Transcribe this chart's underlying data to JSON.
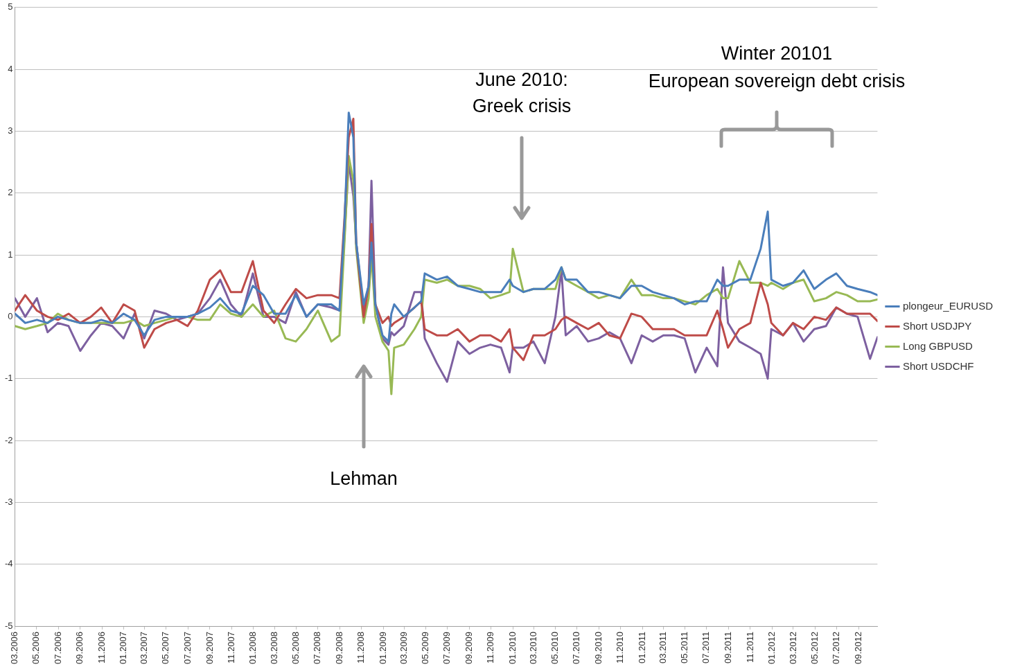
{
  "chart_data": {
    "type": "line",
    "x": [
      "2006-03-01",
      "2006-03-30",
      "2006-05-02",
      "2006-06-01",
      "2006-06-30",
      "2006-07-30",
      "2006-09-01",
      "2006-10-01",
      "2006-10-30",
      "2006-11-30",
      "2007-01-01",
      "2007-02-01",
      "2007-02-28",
      "2007-03-29",
      "2007-05-01",
      "2007-05-31",
      "2007-06-30",
      "2007-07-29",
      "2007-09-01",
      "2007-09-30",
      "2007-10-30",
      "2007-11-29",
      "2007-12-31",
      "2008-01-30",
      "2008-02-29",
      "2008-04-01",
      "2008-04-30",
      "2008-05-30",
      "2008-07-01",
      "2008-08-08",
      "2008-08-31",
      "2008-09-14",
      "2008-09-26",
      "2008-10-09",
      "2008-10-17",
      "2008-11-07",
      "2008-11-21",
      "2008-11-29",
      "2008-12-10",
      "2008-12-30",
      "2009-01-16",
      "2009-01-24",
      "2009-02-01",
      "2009-02-28",
      "2009-03-30",
      "2009-04-18",
      "2009-04-28",
      "2009-06-01",
      "2009-06-30",
      "2009-07-30",
      "2009-09-01",
      "2009-10-01",
      "2009-10-30",
      "2009-11-29",
      "2009-12-23",
      "2010-01-01",
      "2010-01-31",
      "2010-02-28",
      "2010-04-01",
      "2010-05-01",
      "2010-05-18",
      "2010-05-30",
      "2010-06-30",
      "2010-08-01",
      "2010-08-31",
      "2010-09-30",
      "2010-10-30",
      "2010-12-01",
      "2010-12-30",
      "2011-01-30",
      "2011-03-01",
      "2011-03-31",
      "2011-04-30",
      "2011-05-30",
      "2011-07-01",
      "2011-07-31",
      "2011-08-16",
      "2011-08-30",
      "2011-10-01",
      "2011-11-01",
      "2011-11-30",
      "2011-12-20",
      "2011-12-30",
      "2012-02-01",
      "2012-02-29",
      "2012-03-30",
      "2012-04-29",
      "2012-06-01",
      "2012-06-30",
      "2012-07-30",
      "2012-08-29",
      "2012-10-03",
      "2012-10-24"
    ],
    "series": [
      {
        "name": "plongeur_EURUSD",
        "color": "#4a7ebb",
        "values": [
          0.05,
          -0.1,
          -0.05,
          -0.1,
          0.0,
          -0.05,
          -0.1,
          -0.1,
          -0.05,
          -0.1,
          0.05,
          -0.05,
          -0.3,
          -0.05,
          0.0,
          0.0,
          0.0,
          0.05,
          0.15,
          0.3,
          0.1,
          0.05,
          0.5,
          0.35,
          0.05,
          0.05,
          0.35,
          0.0,
          0.2,
          0.2,
          0.1,
          1.5,
          3.3,
          2.9,
          1.2,
          0.2,
          0.5,
          1.2,
          0.2,
          -0.3,
          -0.4,
          0.05,
          0.2,
          0.0,
          0.15,
          0.25,
          0.7,
          0.6,
          0.65,
          0.5,
          0.45,
          0.4,
          0.4,
          0.4,
          0.6,
          0.5,
          0.4,
          0.45,
          0.45,
          0.6,
          0.8,
          0.6,
          0.6,
          0.4,
          0.4,
          0.35,
          0.3,
          0.5,
          0.5,
          0.4,
          0.35,
          0.3,
          0.2,
          0.25,
          0.25,
          0.6,
          0.5,
          0.5,
          0.6,
          0.6,
          1.1,
          1.7,
          0.6,
          0.5,
          0.55,
          0.75,
          0.45,
          0.6,
          0.7,
          0.5,
          0.45,
          0.4,
          0.35
        ]
      },
      {
        "name": "Short USDJPY",
        "color": "#be4b48",
        "values": [
          0.1,
          0.35,
          0.1,
          0.0,
          -0.05,
          0.05,
          -0.1,
          0.0,
          0.15,
          -0.1,
          0.2,
          0.1,
          -0.5,
          -0.2,
          -0.1,
          -0.05,
          -0.15,
          0.1,
          0.6,
          0.75,
          0.4,
          0.4,
          0.9,
          0.1,
          -0.1,
          0.2,
          0.45,
          0.3,
          0.35,
          0.35,
          0.3,
          1.6,
          2.9,
          3.2,
          1.2,
          0.0,
          0.5,
          1.5,
          0.2,
          -0.1,
          0.0,
          -0.15,
          -0.1,
          0.0,
          0.15,
          0.25,
          -0.2,
          -0.3,
          -0.3,
          -0.2,
          -0.4,
          -0.3,
          -0.3,
          -0.4,
          -0.2,
          -0.5,
          -0.7,
          -0.3,
          -0.3,
          -0.2,
          -0.05,
          0.0,
          -0.1,
          -0.2,
          -0.1,
          -0.3,
          -0.35,
          0.05,
          0.0,
          -0.2,
          -0.2,
          -0.2,
          -0.3,
          -0.3,
          -0.3,
          0.1,
          -0.2,
          -0.5,
          -0.2,
          -0.1,
          0.55,
          0.2,
          -0.1,
          -0.3,
          -0.1,
          -0.2,
          0.0,
          -0.05,
          0.15,
          0.05,
          0.05,
          0.05,
          -0.07
        ]
      },
      {
        "name": "Long GBPUSD",
        "color": "#98b954",
        "values": [
          -0.15,
          -0.2,
          -0.15,
          -0.1,
          0.05,
          -0.05,
          -0.1,
          -0.1,
          -0.1,
          -0.1,
          -0.1,
          -0.05,
          -0.15,
          -0.1,
          -0.05,
          0.0,
          0.0,
          -0.05,
          -0.05,
          0.2,
          0.05,
          0.0,
          0.2,
          0.0,
          0.1,
          -0.35,
          -0.4,
          -0.2,
          0.1,
          -0.4,
          -0.3,
          1.2,
          2.6,
          2.2,
          1.1,
          -0.1,
          0.3,
          1.0,
          0.0,
          -0.4,
          -0.55,
          -1.25,
          -0.5,
          -0.45,
          -0.2,
          0.0,
          0.6,
          0.55,
          0.6,
          0.5,
          0.5,
          0.45,
          0.3,
          0.35,
          0.4,
          1.1,
          0.4,
          0.45,
          0.45,
          0.45,
          0.8,
          0.6,
          0.5,
          0.4,
          0.3,
          0.35,
          0.3,
          0.6,
          0.35,
          0.35,
          0.3,
          0.3,
          0.25,
          0.2,
          0.35,
          0.45,
          0.3,
          0.3,
          0.9,
          0.55,
          0.55,
          0.5,
          0.55,
          0.45,
          0.55,
          0.6,
          0.25,
          0.3,
          0.4,
          0.35,
          0.25,
          0.25,
          0.28
        ]
      },
      {
        "name": "Short USDCHF",
        "color": "#7d60a0",
        "values": [
          0.3,
          0.0,
          0.3,
          -0.25,
          -0.1,
          -0.15,
          -0.55,
          -0.3,
          -0.1,
          -0.15,
          -0.35,
          0.05,
          -0.35,
          0.1,
          0.05,
          -0.05,
          0.0,
          0.05,
          0.3,
          0.6,
          0.2,
          0.0,
          0.7,
          0.0,
          0.0,
          -0.1,
          0.4,
          0.0,
          0.2,
          0.15,
          0.1,
          1.3,
          2.5,
          1.95,
          1.2,
          0.1,
          0.5,
          2.2,
          0.2,
          -0.35,
          -0.45,
          -0.25,
          -0.3,
          -0.15,
          0.4,
          0.4,
          -0.35,
          -0.75,
          -1.05,
          -0.4,
          -0.6,
          -0.5,
          -0.45,
          -0.5,
          -0.9,
          -0.5,
          -0.5,
          -0.4,
          -0.75,
          0.0,
          0.75,
          -0.3,
          -0.15,
          -0.4,
          -0.35,
          -0.25,
          -0.35,
          -0.75,
          -0.3,
          -0.4,
          -0.3,
          -0.3,
          -0.35,
          -0.9,
          -0.5,
          -0.8,
          0.8,
          -0.1,
          -0.4,
          -0.5,
          -0.6,
          -1.0,
          -0.2,
          -0.3,
          -0.1,
          -0.4,
          -0.2,
          -0.15,
          0.15,
          0.05,
          0.0,
          -0.68,
          -0.33
        ]
      }
    ],
    "xlim": [
      "2006-03-01",
      "2012-10-24"
    ],
    "xticks": [
      {
        "value": "2006-03",
        "label": "03.2006"
      },
      {
        "value": "2006-05",
        "label": "05.2006"
      },
      {
        "value": "2006-07",
        "label": "07.2006"
      },
      {
        "value": "2006-09",
        "label": "09.2006"
      },
      {
        "value": "2006-11",
        "label": "11.2006"
      },
      {
        "value": "2007-01",
        "label": "01.2007"
      },
      {
        "value": "2007-03",
        "label": "03.2007"
      },
      {
        "value": "2007-05",
        "label": "05.2007"
      },
      {
        "value": "2007-07",
        "label": "07.2007"
      },
      {
        "value": "2007-09",
        "label": "09.2007"
      },
      {
        "value": "2007-11",
        "label": "11.2007"
      },
      {
        "value": "2008-01",
        "label": "01.2008"
      },
      {
        "value": "2008-03",
        "label": "03.2008"
      },
      {
        "value": "2008-05",
        "label": "05.2008"
      },
      {
        "value": "2008-07",
        "label": "07.2008"
      },
      {
        "value": "2008-09",
        "label": "09.2008"
      },
      {
        "value": "2008-11",
        "label": "11.2008"
      },
      {
        "value": "2009-01",
        "label": "01.2009"
      },
      {
        "value": "2009-03",
        "label": "03.2009"
      },
      {
        "value": "2009-05",
        "label": "05.2009"
      },
      {
        "value": "2009-07",
        "label": "07.2009"
      },
      {
        "value": "2009-09",
        "label": "09.2009"
      },
      {
        "value": "2009-11",
        "label": "11.2009"
      },
      {
        "value": "2010-01",
        "label": "01.2010"
      },
      {
        "value": "2010-03",
        "label": "03.2010"
      },
      {
        "value": "2010-05",
        "label": "05.2010"
      },
      {
        "value": "2010-07",
        "label": "07.2010"
      },
      {
        "value": "2010-09",
        "label": "09.2010"
      },
      {
        "value": "2010-11",
        "label": "11.2010"
      },
      {
        "value": "2011-01",
        "label": "01.2011"
      },
      {
        "value": "2011-03",
        "label": "03.2011"
      },
      {
        "value": "2011-05",
        "label": "05.2011"
      },
      {
        "value": "2011-07",
        "label": "07.2011"
      },
      {
        "value": "2011-09",
        "label": "09.2011"
      },
      {
        "value": "2011-11",
        "label": "11.2011"
      },
      {
        "value": "2012-01",
        "label": "01.2012"
      },
      {
        "value": "2012-03",
        "label": "03.2012"
      },
      {
        "value": "2012-05",
        "label": "05.2012"
      },
      {
        "value": "2012-07",
        "label": "07.2012"
      },
      {
        "value": "2012-09",
        "label": "09.2012"
      }
    ],
    "ylim": [
      -5,
      5
    ],
    "yticks": [
      -5,
      -4,
      -3,
      -2,
      -1,
      0,
      1,
      2,
      3,
      4,
      5
    ],
    "grid": "y",
    "legend": "right",
    "annotations": [
      "Lehman",
      "June 2010:",
      "Greek crisis",
      "Winter 20101",
      "European sovereign debt crisis"
    ]
  }
}
